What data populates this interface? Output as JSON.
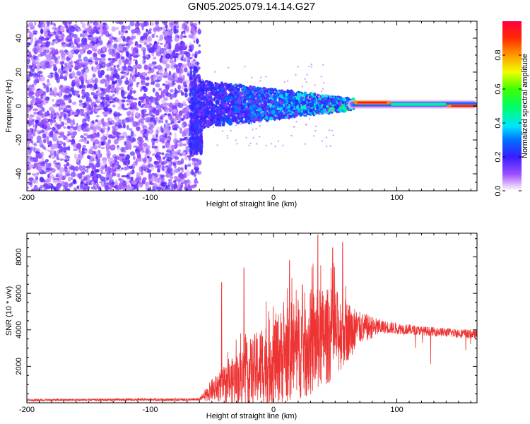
{
  "chart_data": [
    {
      "type": "heatmap",
      "title": "GN05.2025.079.14.14.G27",
      "xlabel": "Height of straight line (km)",
      "ylabel": "Frequency (Hz)",
      "xlim": [
        -200,
        165
      ],
      "ylim": [
        -50,
        50
      ],
      "xticks": [
        -200,
        -100,
        0,
        100
      ],
      "yticks": [
        -40,
        -20,
        0,
        20,
        40
      ],
      "colorbar": {
        "label": "Normalized spectral amplitude",
        "range": [
          0,
          1
        ],
        "ticks": [
          "0.0",
          "0.2",
          "0.4",
          "0.6",
          "0.8"
        ],
        "colormap": "rainbow (white-violet-blue-cyan-green-yellow-red)"
      },
      "regions": [
        {
          "x_range": [
            -200,
            -60
          ],
          "freq_spread_hz": [
            -50,
            50
          ],
          "amplitude": 0.05,
          "description_level": "low-noise"
        },
        {
          "x_range": [
            -60,
            20
          ],
          "freq_spread_hz": [
            -10,
            12
          ],
          "amplitude": 0.2
        },
        {
          "x_range": [
            20,
            65
          ],
          "freq_spread_hz": [
            -4,
            4
          ],
          "amplitude": 0.35
        },
        {
          "x_range": [
            65,
            95
          ],
          "freq_center_hz": 2,
          "amplitude": 0.95
        },
        {
          "x_range": [
            95,
            140
          ],
          "freq_center_hz": 1,
          "amplitude": 0.45
        },
        {
          "x_range": [
            140,
            165
          ],
          "freq_center_hz": 0,
          "amplitude": 0.95
        }
      ]
    },
    {
      "type": "line",
      "xlabel": "Height of straight line (km)",
      "ylabel": "SNR (10 * v/v)",
      "xlim": [
        -200,
        165
      ],
      "ylim": [
        0,
        9300
      ],
      "xticks": [
        -200,
        -100,
        0,
        100
      ],
      "yticks": [
        2000,
        4000,
        6000,
        8000
      ],
      "color": "#ee3333",
      "envelope": [
        {
          "x": -200,
          "mean": 150,
          "spread": 60
        },
        {
          "x": -60,
          "mean": 180,
          "spread": 80
        },
        {
          "x": -50,
          "mean": 700,
          "spread": 600
        },
        {
          "x": -30,
          "mean": 1300,
          "spread": 1400
        },
        {
          "x": -10,
          "mean": 2000,
          "spread": 2200
        },
        {
          "x": 10,
          "mean": 2700,
          "spread": 2700
        },
        {
          "x": 30,
          "mean": 3300,
          "spread": 3000
        },
        {
          "x": 50,
          "mean": 3800,
          "spread": 2500
        },
        {
          "x": 70,
          "mean": 4100,
          "spread": 900
        },
        {
          "x": 90,
          "mean": 4150,
          "spread": 350
        },
        {
          "x": 120,
          "mean": 3950,
          "spread": 250
        },
        {
          "x": 165,
          "mean": 3750,
          "spread": 250
        }
      ],
      "peaks": [
        {
          "x": -42,
          "y": 6600
        },
        {
          "x": -24,
          "y": 7400
        },
        {
          "x": 13,
          "y": 7800
        },
        {
          "x": 36,
          "y": 9200
        },
        {
          "x": 48,
          "y": 8500
        },
        {
          "x": 56,
          "y": 8800
        }
      ]
    }
  ]
}
